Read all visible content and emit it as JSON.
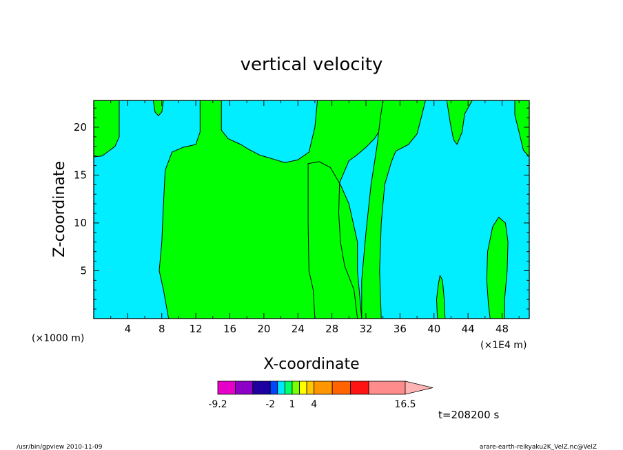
{
  "chart_data": {
    "type": "heatmap",
    "title": "vertical velocity",
    "xlabel": "X-coordinate",
    "ylabel": "Z-coordinate",
    "x_unit_left": "(×1000 m)",
    "x_unit_right": "(×1E4 m)",
    "xlim": [
      0,
      51.2
    ],
    "ylim": [
      0,
      22.8
    ],
    "xticks": [
      4,
      8,
      12,
      16,
      20,
      24,
      28,
      32,
      36,
      40,
      44,
      48
    ],
    "yticks": [
      5,
      10,
      15,
      20
    ],
    "colors": {
      "negative_region": "#00eeff",
      "weak_positive_region": "#00ff00",
      "contour_line": "#000000"
    },
    "regions": [
      {
        "name": "positive-upper-left",
        "fill": "#00ff00",
        "points": [
          [
            0,
            22.8
          ],
          [
            3,
            22.8
          ],
          [
            3,
            19
          ],
          [
            2.5,
            18
          ],
          [
            1,
            17
          ],
          [
            0,
            16.9
          ]
        ]
      },
      {
        "name": "positive-small-blob-top",
        "fill": "#00ff00",
        "points": [
          [
            7,
            22.8
          ],
          [
            8.2,
            22.8
          ],
          [
            8,
            21.6
          ],
          [
            7.6,
            21.2
          ],
          [
            7.2,
            21.6
          ]
        ]
      },
      {
        "name": "positive-central-mass",
        "fill": "#00ff00",
        "points": [
          [
            12.5,
            22.8
          ],
          [
            15,
            22.8
          ],
          [
            15,
            19.7
          ],
          [
            15.8,
            18.8
          ],
          [
            17.3,
            18.2
          ],
          [
            18.2,
            17.7
          ],
          [
            19.5,
            17.1
          ],
          [
            21,
            16.7
          ],
          [
            22.5,
            16.3
          ],
          [
            24,
            16.6
          ],
          [
            25.3,
            17.4
          ],
          [
            26,
            20
          ],
          [
            26.3,
            22.8
          ],
          [
            34,
            22.8
          ],
          [
            34,
            21
          ],
          [
            33.8,
            19.9
          ],
          [
            33,
            18.8
          ],
          [
            32,
            17.9
          ],
          [
            30.8,
            17
          ],
          [
            30,
            16.5
          ],
          [
            28.9,
            14.2
          ],
          [
            28.8,
            11
          ],
          [
            29,
            8
          ],
          [
            29.5,
            5.5
          ],
          [
            30.6,
            3
          ],
          [
            31,
            0
          ],
          [
            26,
            0
          ],
          [
            25.8,
            3
          ],
          [
            25.3,
            5
          ],
          [
            25.2,
            10
          ],
          [
            25.2,
            16.2
          ],
          [
            26.5,
            16.4
          ],
          [
            27.8,
            15.8
          ],
          [
            29,
            14
          ],
          [
            30,
            12
          ],
          [
            30.5,
            10
          ],
          [
            31,
            8
          ],
          [
            31,
            5
          ],
          [
            31.3,
            2
          ],
          [
            31.5,
            0
          ],
          [
            8.8,
            0
          ],
          [
            8.2,
            3
          ],
          [
            7.7,
            5
          ],
          [
            8,
            8
          ],
          [
            8.2,
            12
          ],
          [
            8.4,
            15.5
          ],
          [
            9.2,
            17.4
          ],
          [
            10.5,
            17.9
          ],
          [
            12,
            18.2
          ],
          [
            12.5,
            19.5
          ]
        ]
      },
      {
        "name": "positive-right-column",
        "fill": "#00ff00",
        "points": [
          [
            34,
            22.8
          ],
          [
            39,
            22.8
          ],
          [
            38.5,
            21
          ],
          [
            38,
            19.3
          ],
          [
            37,
            18.2
          ],
          [
            35.5,
            17.5
          ],
          [
            35,
            16.4
          ],
          [
            34.2,
            14
          ],
          [
            33.8,
            10
          ],
          [
            33.6,
            5
          ],
          [
            33.8,
            0
          ],
          [
            31.5,
            0
          ],
          [
            31.5,
            4
          ],
          [
            32,
            9
          ],
          [
            32.6,
            14
          ],
          [
            33.3,
            18
          ],
          [
            33.7,
            21
          ]
        ]
      },
      {
        "name": "positive-right-upper-tongue",
        "fill": "#00ff00",
        "points": [
          [
            41.5,
            22.8
          ],
          [
            44.5,
            22.8
          ],
          [
            43.6,
            21.4
          ],
          [
            43.3,
            19.5
          ],
          [
            42.7,
            18.2
          ],
          [
            42.3,
            18.7
          ],
          [
            41.9,
            20.5
          ]
        ]
      },
      {
        "name": "positive-right-edge",
        "fill": "#00ff00",
        "points": [
          [
            49.5,
            22.8
          ],
          [
            51.2,
            22.8
          ],
          [
            51.2,
            16.9
          ],
          [
            50.5,
            17.6
          ],
          [
            50,
            19.5
          ],
          [
            49.5,
            21.3
          ]
        ]
      },
      {
        "name": "positive-narrow-blob-x41",
        "fill": "#00ff00",
        "points": [
          [
            40.4,
            0
          ],
          [
            41.3,
            0
          ],
          [
            41.2,
            2
          ],
          [
            41,
            4
          ],
          [
            40.7,
            4.5
          ],
          [
            40.5,
            3.5
          ],
          [
            40.3,
            2
          ]
        ]
      },
      {
        "name": "positive-blob-x47",
        "fill": "#00ff00",
        "points": [
          [
            46.6,
            0
          ],
          [
            48.3,
            0
          ],
          [
            48.3,
            2
          ],
          [
            48.6,
            5
          ],
          [
            48.7,
            8
          ],
          [
            48.4,
            10
          ],
          [
            47.6,
            10.6
          ],
          [
            46.9,
            9.6
          ],
          [
            46.3,
            7
          ],
          [
            46.2,
            4
          ],
          [
            46.4,
            1.5
          ]
        ]
      }
    ],
    "colorbar": {
      "tick_labels": [
        "-9.2",
        "-2",
        "1",
        "4",
        "16.5"
      ],
      "tick_values": [
        -9.2,
        -2,
        1,
        4,
        16.5
      ],
      "levels": [
        -9.2,
        -6.8,
        -4.4,
        -2,
        -1,
        0,
        1,
        2,
        3,
        4,
        6.5,
        9,
        11.5,
        16.5
      ],
      "segment_colors": [
        "#e600c8",
        "#8c00c8",
        "#1e00a0",
        "#0046ff",
        "#00e6ff",
        "#00ff64",
        "#78ff00",
        "#ffff00",
        "#ffc800",
        "#ff9600",
        "#ff6400",
        "#ff1414",
        "#ff8c8c"
      ],
      "extension_color": "#ffb4b4"
    }
  },
  "time_label": "t=208200 s",
  "footer_left": "/usr/bin/gpview   2010-11-09",
  "footer_right": "arare-earth-reikyaku2K_VelZ.nc@VelZ"
}
